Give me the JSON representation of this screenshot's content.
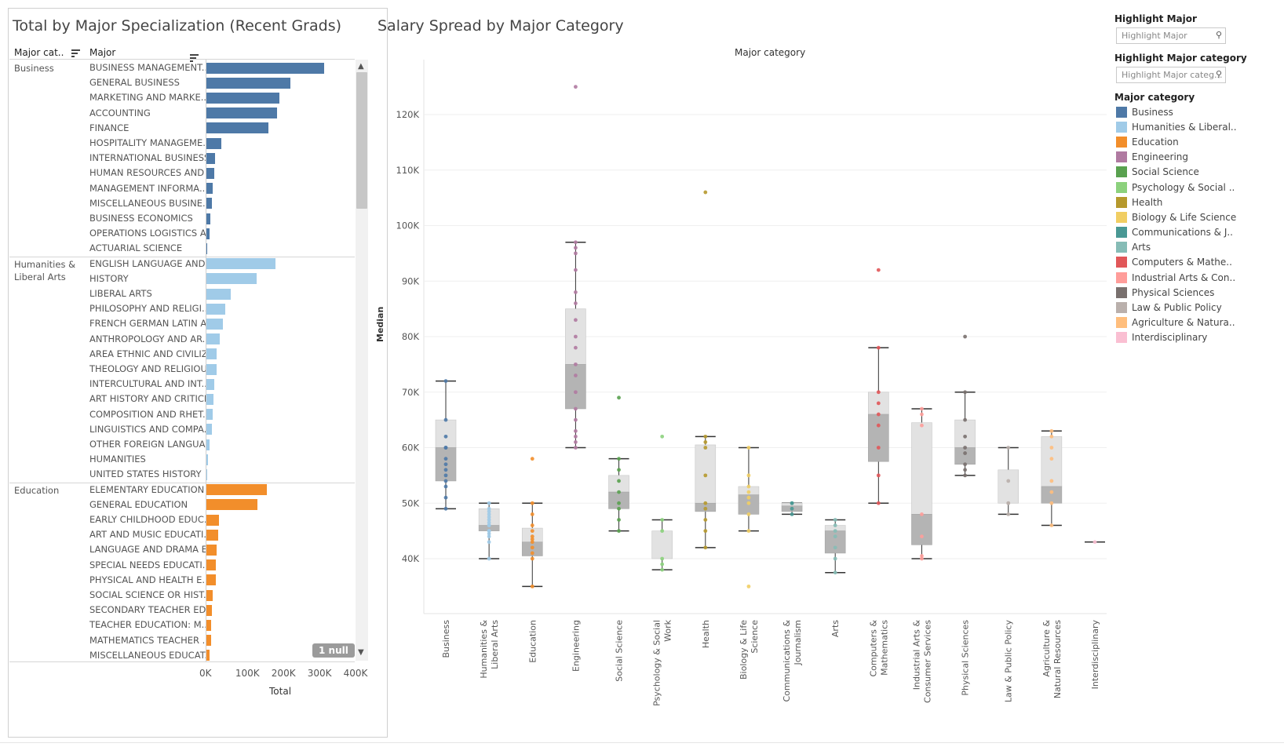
{
  "left_panel": {
    "title": "Total by Major Specialization (Recent Grads)",
    "col_category": "Major cat..",
    "col_major": "Major",
    "x_ticks": [
      "0K",
      "100K",
      "200K",
      "300K",
      "400K"
    ],
    "x_label": "Total",
    "null_badge": "1 null"
  },
  "right_panel": {
    "title": "Salary Spread by Major Category",
    "column_header": "Major category",
    "y_label": "Median"
  },
  "filters": {
    "highlight_major_title": "Highlight Major",
    "highlight_major_placeholder": "Highlight Major",
    "highlight_category_title": "Highlight Major category",
    "highlight_category_placeholder": "Highlight Major categ..."
  },
  "legend": {
    "title": "Major category",
    "items": [
      {
        "label": "Business",
        "color": "#4e79a7"
      },
      {
        "label": "Humanities & Liberal..",
        "color": "#a0cbe8"
      },
      {
        "label": "Education",
        "color": "#f28e2b"
      },
      {
        "label": "Engineering",
        "color": "#b07aa1"
      },
      {
        "label": "Social Science",
        "color": "#59a14f"
      },
      {
        "label": "Psychology & Social ..",
        "color": "#8cd17d"
      },
      {
        "label": "Health",
        "color": "#b6992d"
      },
      {
        "label": "Biology & Life Science",
        "color": "#f1ce63"
      },
      {
        "label": "Communications & J..",
        "color": "#499894"
      },
      {
        "label": "Arts",
        "color": "#86bcb6"
      },
      {
        "label": "Computers & Mathe..",
        "color": "#e15759"
      },
      {
        "label": "Industrial Arts & Con..",
        "color": "#ff9d9a"
      },
      {
        "label": "Physical Sciences",
        "color": "#79706e"
      },
      {
        "label": "Law & Public Policy",
        "color": "#bab0ac"
      },
      {
        "label": "Agriculture & Natura..",
        "color": "#ffbe7d"
      },
      {
        "label": "Interdisciplinary",
        "color": "#fabfd2"
      }
    ]
  },
  "chart_data": [
    {
      "type": "bar",
      "orientation": "horizontal",
      "title": "Total by Major Specialization (Recent Grads)",
      "xlabel": "Total",
      "xlim": [
        0,
        450000
      ],
      "groups": [
        {
          "category": "Business",
          "label": "Business",
          "color": "#4e79a7",
          "majors": [
            {
              "name": "BUSINESS MANAGEMENT...",
              "value": 329927
            },
            {
              "name": "GENERAL BUSINESS",
              "value": 234590
            },
            {
              "name": "MARKETING AND MARKE..",
              "value": 205211
            },
            {
              "name": "ACCOUNTING",
              "value": 198633
            },
            {
              "name": "FINANCE",
              "value": 174506
            },
            {
              "name": "HOSPITALITY MANAGEME..",
              "value": 43647
            },
            {
              "name": "INTERNATIONAL BUSINESS",
              "value": 25894
            },
            {
              "name": "HUMAN RESOURCES AND ..",
              "value": 24497
            },
            {
              "name": "MANAGEMENT INFORMA..",
              "value": 18713
            },
            {
              "name": "MISCELLANEOUS BUSINE..",
              "value": 17947
            },
            {
              "name": "BUSINESS ECONOMICS",
              "value": 13302
            },
            {
              "name": "OPERATIONS LOGISTICS A..",
              "value": 11732
            },
            {
              "name": "ACTUARIAL SCIENCE",
              "value": 3777
            }
          ]
        },
        {
          "category": "Humanities & Liberal Arts",
          "label": "Humanities &\nLiberal Arts",
          "color": "#a0cbe8",
          "majors": [
            {
              "name": "ENGLISH LANGUAGE AND ..",
              "value": 194673
            },
            {
              "name": "HISTORY",
              "value": 141951
            },
            {
              "name": "LIBERAL ARTS",
              "value": 70800
            },
            {
              "name": "PHILOSOPHY AND RELIGI..",
              "value": 54814
            },
            {
              "name": "FRENCH GERMAN LATIN A..",
              "value": 48246
            },
            {
              "name": "ANTHROPOLOGY AND AR..",
              "value": 38844
            },
            {
              "name": "AREA ETHNIC AND CIVILIZ..",
              "value": 31195
            },
            {
              "name": "THEOLOGY AND RELIGIOU..",
              "value": 30207
            },
            {
              "name": "INTERCULTURAL AND INT..",
              "value": 24629
            },
            {
              "name": "ART HISTORY AND CRITICI..",
              "value": 21030
            },
            {
              "name": "COMPOSITION AND RHET..",
              "value": 18953
            },
            {
              "name": "LINGUISTICS AND COMPA..",
              "value": 16601
            },
            {
              "name": "OTHER FOREIGN LANGUA..",
              "value": 11204
            },
            {
              "name": "HUMANITIES",
              "value": 6648
            },
            {
              "name": "UNITED STATES HISTORY",
              "value": 3752
            }
          ]
        },
        {
          "category": "Education",
          "label": "Education",
          "color": "#f28e2b",
          "majors": [
            {
              "name": "ELEMENTARY EDUCATION",
              "value": 170862
            },
            {
              "name": "GENERAL EDUCATION",
              "value": 143718
            },
            {
              "name": "EARLY CHILDHOOD EDUC..",
              "value": 37589
            },
            {
              "name": "ART AND MUSIC EDUCATI..",
              "value": 34181
            },
            {
              "name": "LANGUAGE AND DRAMA E..",
              "value": 30471
            },
            {
              "name": "SPECIAL NEEDS EDUCATI..",
              "value": 28739
            },
            {
              "name": "PHYSICAL AND HEALTH E..",
              "value": 28213
            },
            {
              "name": "SOCIAL SCIENCE OR HIST..",
              "value": 20198
            },
            {
              "name": "SECONDARY TEACHER ED..",
              "value": 17125
            },
            {
              "name": "TEACHER EDUCATION: M..",
              "value": 14443
            },
            {
              "name": "MATHEMATICS TEACHER ..",
              "value": 14237
            },
            {
              "name": "MISCELLANEOUS EDUCAT..",
              "value": 10150
            }
          ]
        }
      ]
    },
    {
      "type": "box",
      "title": "Salary Spread by Major Category",
      "ylabel": "Median",
      "xlabel": "Major category",
      "ylim": [
        30000,
        130000
      ],
      "yticks": [
        40000,
        50000,
        60000,
        70000,
        80000,
        90000,
        100000,
        110000,
        120000
      ],
      "ytick_labels": [
        "40K",
        "50K",
        "60K",
        "70K",
        "80K",
        "90K",
        "100K",
        "110K",
        "120K"
      ],
      "categories": [
        {
          "name": "Business",
          "label": "Business",
          "color": "#4e79a7",
          "whisker": [
            49000,
            72000
          ],
          "q1": 54000,
          "median": 60000,
          "q3": 65000,
          "points": [
            49000,
            53000,
            54000,
            56000,
            58000,
            60000,
            60000,
            62000,
            65000,
            72000,
            51000,
            55000,
            57000
          ]
        },
        {
          "name": "Humanities & Liberal Arts",
          "label": "Humanities &\nLiberal Arts",
          "color": "#a0cbe8",
          "whisker": [
            40000,
            50000
          ],
          "q1": 45000,
          "median": 46000,
          "q3": 49000,
          "points": [
            40000,
            43000,
            44000,
            45000,
            46000,
            46000,
            47000,
            48000,
            49000,
            50000,
            45000,
            46500,
            47500,
            48500,
            44500
          ]
        },
        {
          "name": "Education",
          "label": "Education",
          "color": "#f28e2b",
          "whisker": [
            35000,
            50000
          ],
          "q1": 40500,
          "median": 43000,
          "q3": 45500,
          "points": [
            35000,
            40000,
            41000,
            42000,
            43000,
            44000,
            45000,
            46000,
            48000,
            50000,
            58000,
            43500
          ]
        },
        {
          "name": "Engineering",
          "label": "Engineering",
          "color": "#b07aa1",
          "whisker": [
            60000,
            97000
          ],
          "q1": 67000,
          "median": 75000,
          "q3": 85000,
          "points": [
            60000,
            61000,
            62000,
            63000,
            65000,
            67000,
            70000,
            73000,
            75000,
            78000,
            80000,
            83000,
            86000,
            88000,
            92000,
            95000,
            96000,
            97000,
            125000
          ]
        },
        {
          "name": "Social Science",
          "label": "Social Science",
          "color": "#59a14f",
          "whisker": [
            45000,
            58000
          ],
          "q1": 49000,
          "median": 52000,
          "q3": 55000,
          "points": [
            45000,
            47000,
            49000,
            50000,
            52000,
            54000,
            56000,
            58000,
            69000
          ]
        },
        {
          "name": "Psychology & Social Work",
          "label": "Psychology & Social\nWork",
          "color": "#8cd17d",
          "whisker": [
            38000,
            47000
          ],
          "q1": 40000,
          "median": 40000,
          "q3": 45000,
          "points": [
            38000,
            39000,
            40000,
            45000,
            47000,
            62000
          ]
        },
        {
          "name": "Health",
          "label": "Health",
          "color": "#b6992d",
          "whisker": [
            42000,
            62000
          ],
          "q1": 48500,
          "median": 50000,
          "q3": 60500,
          "points": [
            42000,
            45000,
            47000,
            49000,
            50000,
            55000,
            60000,
            61000,
            62000,
            106000
          ]
        },
        {
          "name": "Biology & Life Science",
          "label": "Biology & Life\nScience",
          "color": "#f1ce63",
          "whisker": [
            45000,
            60000
          ],
          "q1": 48000,
          "median": 51500,
          "q3": 53000,
          "points": [
            45000,
            48000,
            50000,
            51000,
            52000,
            53000,
            55000,
            60000,
            35000
          ]
        },
        {
          "name": "Communications & Journalism",
          "label": "Communications &\nJournalism",
          "color": "#499894",
          "whisker": [
            48000,
            50000
          ],
          "q1": 48500,
          "median": 49500,
          "q3": 50000,
          "points": [
            48000,
            49000,
            50000,
            50000
          ]
        },
        {
          "name": "Arts",
          "label": "Arts",
          "color": "#86bcb6",
          "whisker": [
            37500,
            47000
          ],
          "q1": 41000,
          "median": 45000,
          "q3": 46000,
          "points": [
            37500,
            40000,
            42000,
            44000,
            45000,
            46000,
            47000
          ]
        },
        {
          "name": "Computers & Mathematics",
          "label": "Computers &\nMathematics",
          "color": "#e15759",
          "whisker": [
            50000,
            78000
          ],
          "q1": 57500,
          "median": 66000,
          "q3": 70000,
          "points": [
            50000,
            55000,
            60000,
            64000,
            66000,
            68000,
            70000,
            78000,
            92000
          ]
        },
        {
          "name": "Industrial Arts & Consumer Services",
          "label": "Industrial Arts &\nConsumer Services",
          "color": "#ff9d9a",
          "whisker": [
            40000,
            67000
          ],
          "q1": 42500,
          "median": 48000,
          "q3": 64500,
          "points": [
            40000,
            40500,
            44000,
            48000,
            64000,
            66000,
            67000
          ]
        },
        {
          "name": "Physical Sciences",
          "label": "Physical Sciences",
          "color": "#79706e",
          "whisker": [
            55000,
            70000
          ],
          "q1": 57000,
          "median": 60000,
          "q3": 65000,
          "points": [
            55000,
            56000,
            57000,
            59000,
            60000,
            62000,
            65000,
            70000,
            80000
          ]
        },
        {
          "name": "Law & Public Policy",
          "label": "Law & Public Policy",
          "color": "#bab0ac",
          "whisker": [
            48000,
            60000
          ],
          "q1": 50000,
          "median": 50000,
          "q3": 56000,
          "points": [
            48000,
            50000,
            54000,
            60000,
            50000
          ]
        },
        {
          "name": "Agriculture & Natural Resources",
          "label": "Agriculture &\nNatural Resources",
          "color": "#ffbe7d",
          "whisker": [
            46000,
            63000
          ],
          "q1": 50000,
          "median": 53000,
          "q3": 62000,
          "points": [
            46000,
            50000,
            52000,
            54000,
            58000,
            62000,
            63000,
            60000
          ]
        },
        {
          "name": "Interdisciplinary",
          "label": "Interdisciplinary",
          "color": "#fabfd2",
          "whisker": [
            43000,
            43000
          ],
          "q1": 43000,
          "median": 43000,
          "q3": 43000,
          "points": [
            43000
          ]
        }
      ]
    }
  ]
}
